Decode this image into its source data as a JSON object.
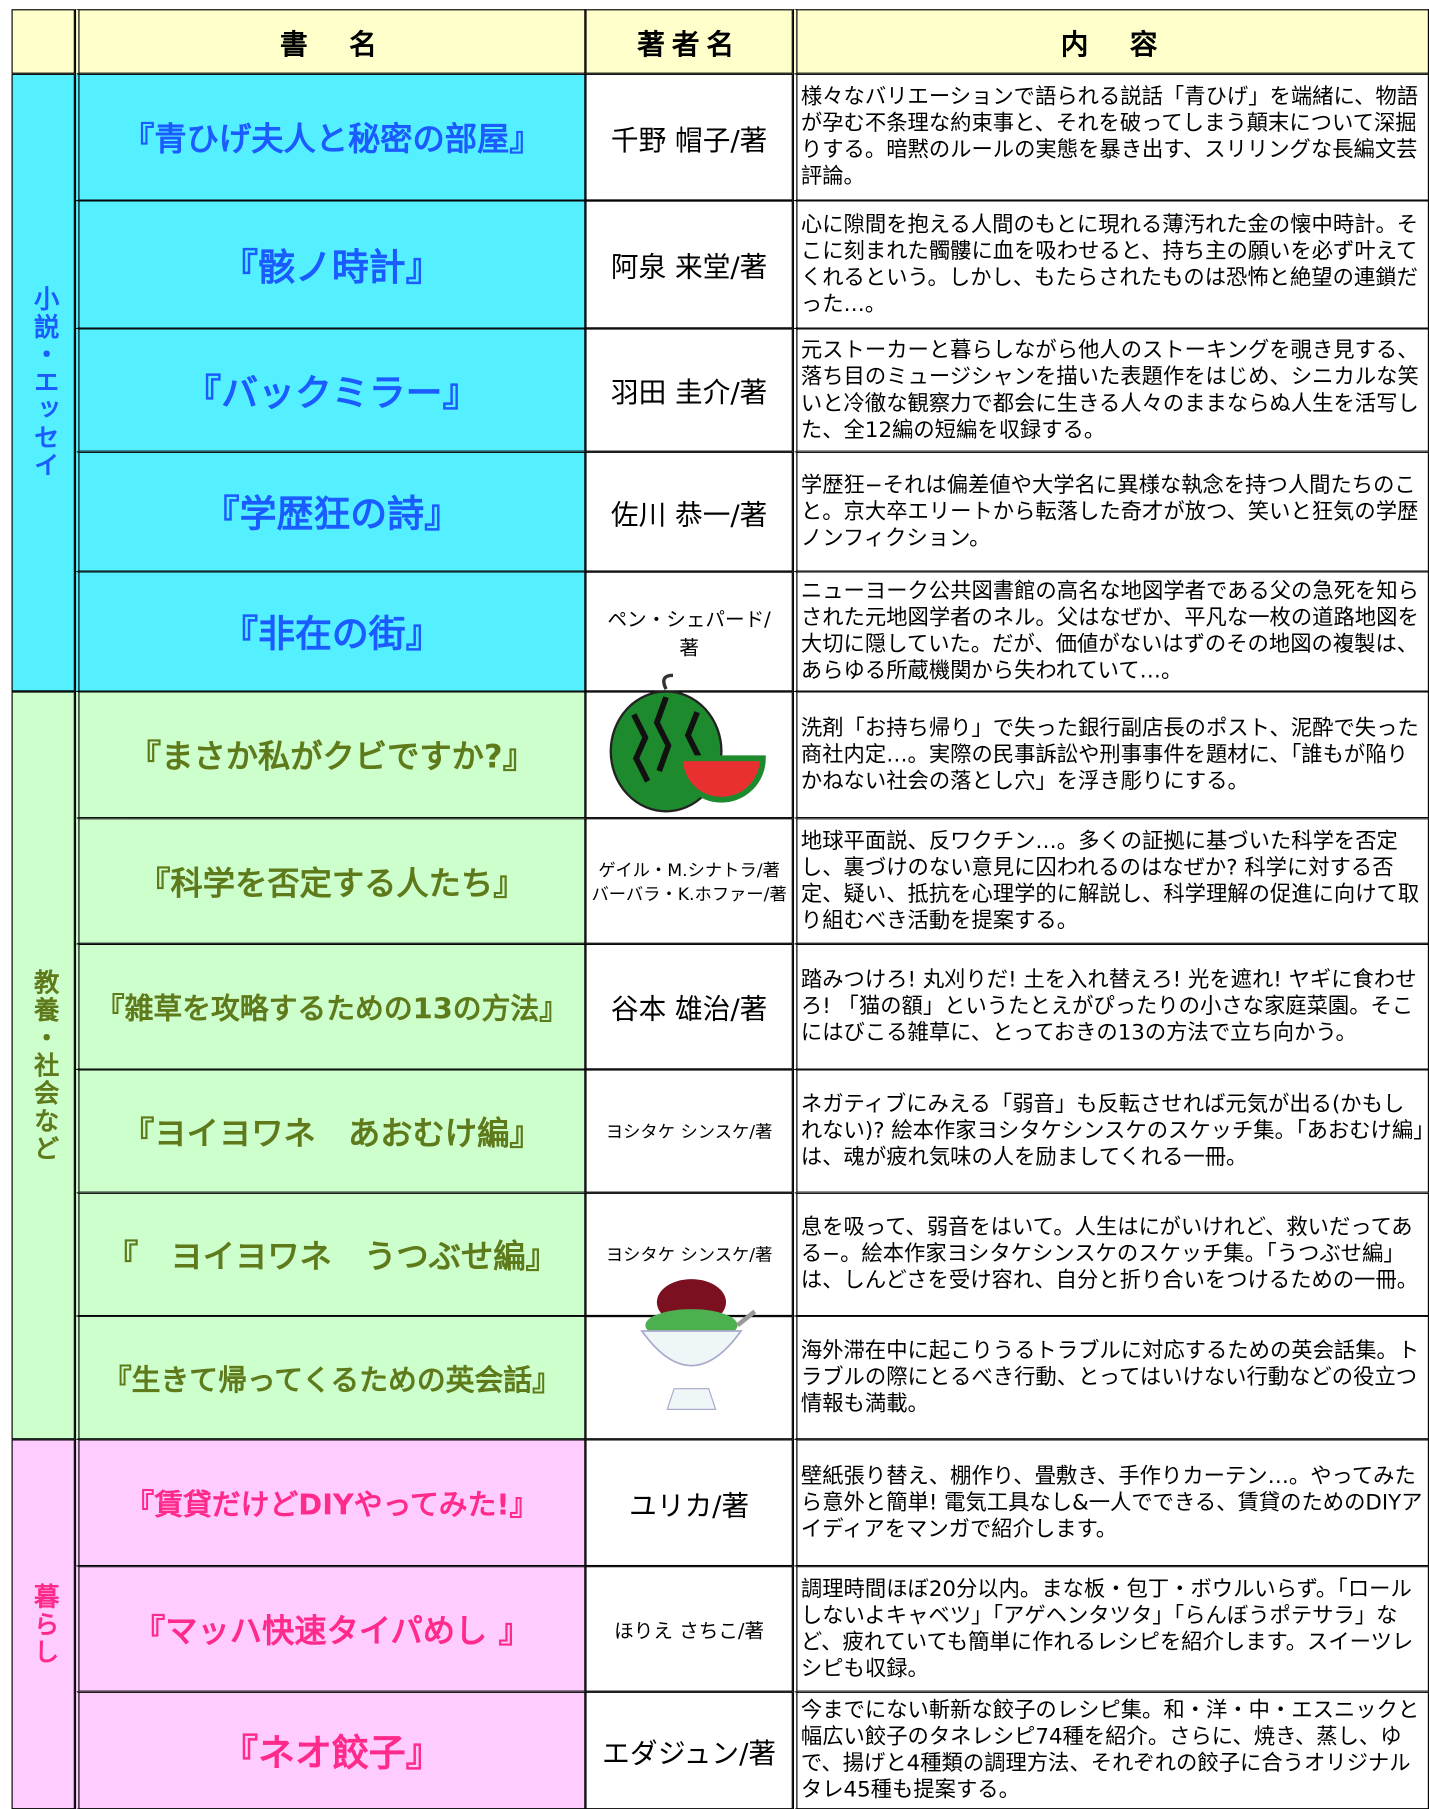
{
  "header": {
    "blank": "",
    "title": "書　名",
    "author": "著者名",
    "content": "内　容"
  },
  "groups": [
    {
      "label": "小説・エッセイ",
      "rows": [
        {
          "title": "『青ひげ夫人と秘密の部屋』",
          "authors": [
            "千野 帽子/著"
          ],
          "content": "様々なバリエーションで語られる説話「青ひげ」を端緒に、物語が孕む不条理な約束事と、それを破ってしまう顛末について深掘りする。暗黙のルールの実態を暴き出す、スリリングな長編文芸評論。"
        },
        {
          "title": "『骸ノ時計』",
          "authors": [
            "阿泉 来堂/著"
          ],
          "content": "心に隙間を抱える人間のもとに現れる薄汚れた金の懐中時計。そこに刻まれた髑髏に血を吸わせると、持ち主の願いを必ず叶えてくれるという。しかし、もたらされたものは恐怖と絶望の連鎖だった…。"
        },
        {
          "title": "『バックミラー』",
          "authors": [
            "羽田 圭介/著"
          ],
          "content": "元ストーカーと暮らしながら他人のストーキングを覗き見する、落ち目のミュージシャンを描いた表題作をはじめ、シニカルな笑いと冷徹な観察力で都会に生きる人々のままならぬ人生を活写した、全12編の短編を収録する。"
        },
        {
          "title": "『学歴狂の詩』",
          "authors": [
            "佐川 恭一/著"
          ],
          "content": "学歴狂−それは偏差値や大学名に異様な執念を持つ人間たちのこと。京大卒エリートから転落した奇才が放つ、笑いと狂気の学歴ノンフィクション。"
        },
        {
          "title": "『非在の街』",
          "authors": [
            "ペン・シェパード/著"
          ],
          "content": "ニューヨーク公共図書館の高名な地図学者である父の急死を知らされた元地図学者のネル。父はなぜか、平凡な一枚の道路地図を大切に隠していた。だが、価値がないはずのその地図の複製は、あらゆる所蔵機関から失われていて…。"
        }
      ]
    },
    {
      "label": "教養・社会など",
      "rows": [
        {
          "title": "『まさか私がクビですか?』",
          "authors": [],
          "content": "洗剤「お持ち帰り」で失った銀行副店長のポスト、泥酔で失った商社内定…。実際の民事訴訟や刑事事件を題材に、「誰もが陥りかねない社会の落とし穴」を浮き彫りにする。"
        },
        {
          "title": "『科学を否定する人たち』",
          "authors": [
            "ゲイル・M.シナトラ/著",
            "バーバラ・K.ホファー/著"
          ],
          "content": "地球平面説、反ワクチン…。多くの証拠に基づいた科学を否定し、裏づけのない意見に囚われるのはなぜか? 科学に対する否定、疑い、抵抗を心理学的に解説し、科学理解の促進に向けて取り組むべき活動を提案する。"
        },
        {
          "title": "『雑草を攻略するための13の方法』",
          "authors": [
            "谷本 雄治/著"
          ],
          "content": "踏みつけろ! 丸刈りだ! 土を入れ替えろ! 光を遮れ! ヤギに食わせろ! 「猫の額」というたとえがぴったりの小さな家庭菜園。そこにはびこる雑草に、とっておきの13の方法で立ち向かう。"
        },
        {
          "title": "『ヨイヨワネ　あおむけ編』",
          "authors": [
            "ヨシタケ シンスケ/著"
          ],
          "content": "ネガティブにみえる「弱音」も反転させれば元気が出る(かもしれない)? 絵本作家ヨシタケシンスケのスケッチ集。「あおむけ編」は、魂が疲れ気味の人を励ましてくれる一冊。"
        },
        {
          "title": "『　ヨイヨワネ　うつぶせ編』",
          "authors": [
            "ヨシタケ シンスケ/著"
          ],
          "content": "息を吸って、弱音をはいて。人生はにがいけれど、救いだってある−。絵本作家ヨシタケシンスケのスケッチ集。「うつぶせ編」は、しんどさを受け容れ、自分と折り合いをつけるための一冊。"
        },
        {
          "title": "『生きて帰ってくるための英会話』",
          "authors": [],
          "content": "海外滞在中に起こりうるトラブルに対応するための英会話集。トラブルの際にとるべき行動、とってはいけない行動などの役立つ情報も満載。"
        }
      ]
    },
    {
      "label": "暮らし",
      "rows": [
        {
          "title": "『賃貸だけどDIYやってみた!』",
          "authors": [
            "ユリカ/著"
          ],
          "content": "壁紙張り替え、棚作り、畳敷き、手作りカーテン…。やってみたら意外と簡単! 電気工具なし&一人でできる、賃貸のためのDIYアイディアをマンガで紹介します。"
        },
        {
          "title": "『マッハ快速タイパめし 』",
          "authors": [
            "ほりえ さちこ/著"
          ],
          "content": "調理時間ほぼ20分以内。まな板・包丁・ボウルいらず。「ロールしないよキャベツ」「アゲヘンタツタ」「らんぼうポテサラ」など、疲れていても簡単に作れるレシピを紹介します。スイーツレシピも収録。"
        },
        {
          "title": "『ネオ餃子』",
          "authors": [
            "エダジュン/著"
          ],
          "content": "今までにない斬新な餃子のレシピ集。和・洋・中・エスニックと幅広い餃子のタネレシピ74種を紹介。さらに、焼き、蒸し、ゆで、揚げと4種類の調理方法、それぞれの餃子に合うオリジナルタレ45種も提案する。"
        }
      ]
    }
  ]
}
